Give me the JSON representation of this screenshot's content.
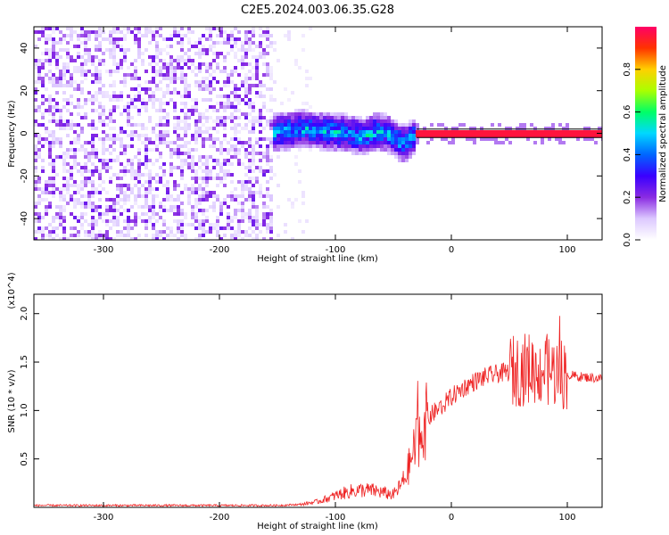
{
  "title": "C2E5.2024.003.06.35.G28",
  "colors": {
    "background": "#ffffff",
    "snr_line": "#ee2222",
    "signal_line": "#000000",
    "colorbar_stops": [
      "#ffffff",
      "#dcc8ff",
      "#8a2be2",
      "#3a00ff",
      "#0066ff",
      "#00d8ff",
      "#00ff66",
      "#aaff00",
      "#ffd000",
      "#ff3300",
      "#ff0066"
    ]
  },
  "chart_data": [
    {
      "type": "heatmap",
      "description_of_content": "Spectrogram of frequency vs height of straight line",
      "xlabel": "Height of straight line (km)",
      "ylabel": "Frequency (Hz)",
      "xlim": [
        -360,
        130
      ],
      "ylim": [
        -50,
        50
      ],
      "xticks": [
        -300,
        -200,
        -100,
        0,
        100
      ],
      "yticks": [
        -40,
        -20,
        0,
        20,
        40
      ],
      "colorbar": {
        "label": "Normalized spectral amplitude",
        "range": [
          0.0,
          1.0
        ],
        "ticks": [
          0.0,
          0.2,
          0.4,
          0.6,
          0.8
        ]
      },
      "regions": [
        {
          "x_range": [
            -360,
            -155
          ],
          "kind": "broadband noise, purple speckle",
          "amplitude": 0.1
        },
        {
          "x_range": [
            -155,
            -120
          ],
          "kind": "sparse faint noise",
          "amplitude": 0.02
        },
        {
          "x_range": [
            -155,
            -30
          ],
          "kind": "signal band near 0 Hz, dipping to about -5 Hz",
          "amplitude": 0.35
        },
        {
          "x_range": [
            -30,
            130
          ],
          "kind": "narrow strong line at 0 Hz",
          "amplitude": 0.95
        }
      ],
      "signal_track": {
        "x": [
          -155,
          -130,
          -110,
          -90,
          -75,
          -65,
          -55,
          -45,
          -40,
          -35,
          -28,
          -20,
          -10,
          0,
          130
        ],
        "y": [
          0,
          2,
          1,
          0,
          -2,
          1,
          0,
          -4,
          -5,
          -3,
          0,
          1,
          0,
          0,
          0
        ]
      }
    },
    {
      "type": "line",
      "xlabel": "Height of straight line (km)",
      "ylabel": "SNR (10 * v/v)",
      "scale_label": "(x10^4)",
      "xlim": [
        -360,
        130
      ],
      "ylim": [
        0,
        2.2
      ],
      "xticks": [
        -300,
        -200,
        -100,
        0,
        100
      ],
      "yticks": [
        0.5,
        1.0,
        1.5,
        2.0
      ],
      "series": [
        {
          "x": [
            -360,
            -300,
            -250,
            -200,
            -150,
            -130,
            -115,
            -105,
            -95,
            -85,
            -75,
            -65,
            -55,
            -50,
            -45,
            -40,
            -35,
            -30,
            -25,
            -20,
            -15,
            -10,
            -5,
            0,
            10,
            20,
            30,
            40,
            50,
            60,
            70,
            80,
            90,
            100,
            110,
            120,
            130
          ],
          "y": [
            0.02,
            0.02,
            0.02,
            0.02,
            0.02,
            0.03,
            0.06,
            0.1,
            0.14,
            0.17,
            0.18,
            0.17,
            0.14,
            0.13,
            0.2,
            0.3,
            0.48,
            0.68,
            0.82,
            0.92,
            0.98,
            1.03,
            1.08,
            1.14,
            1.23,
            1.3,
            1.35,
            1.38,
            1.4,
            1.42,
            1.44,
            1.42,
            1.4,
            1.37,
            1.35,
            1.34,
            1.33
          ]
        }
      ]
    }
  ]
}
